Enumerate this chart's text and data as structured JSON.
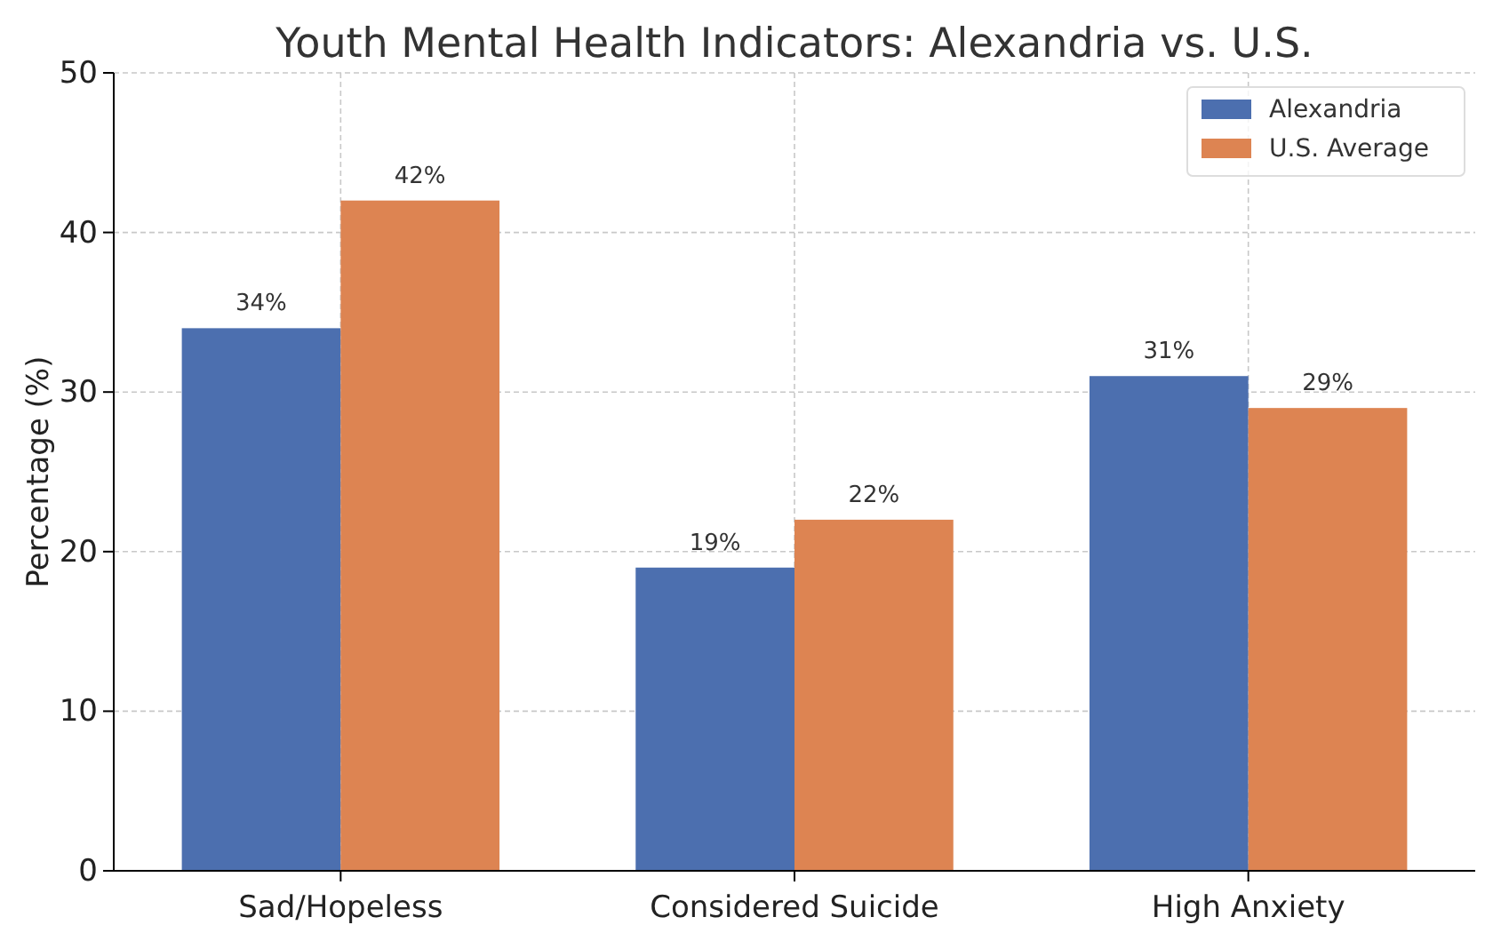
{
  "chart_data": {
    "type": "bar",
    "title": "Youth Mental Health Indicators: Alexandria vs. U.S.",
    "ylabel": "Percentage (%)",
    "categories": [
      "Sad/Hopeless",
      "Considered Suicide",
      "High Anxiety"
    ],
    "series": [
      {
        "name": "Alexandria",
        "color": "#4c6faf",
        "values": [
          34,
          19,
          31
        ],
        "value_labels": [
          "34%",
          "19%",
          "31%"
        ]
      },
      {
        "name": "U.S. Average",
        "color": "#dd8452",
        "values": [
          42,
          22,
          29
        ],
        "value_labels": [
          "42%",
          "22%",
          "29%"
        ]
      }
    ],
    "ylim": [
      0,
      50
    ],
    "yticks": [
      0,
      10,
      20,
      30,
      40,
      50
    ],
    "grid": true,
    "legend": "top right"
  }
}
